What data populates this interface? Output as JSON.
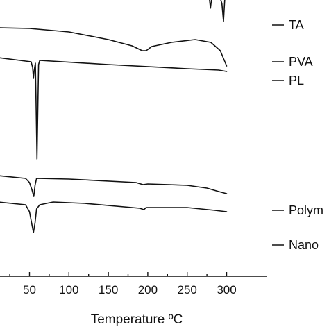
{
  "chart_data": {
    "type": "line",
    "xlabel": "Temperature ºC",
    "ylabel": "",
    "xlim": [
      10,
      305
    ],
    "xticks": [
      50,
      100,
      150,
      200,
      250,
      300
    ],
    "tick_labels": [
      "50",
      "100",
      "150",
      "200",
      "250",
      "300"
    ],
    "grid": false,
    "legend": "right, next to each trace",
    "series": [
      {
        "name": "TA",
        "points": [
          [
            10,
            20
          ],
          [
            40,
            20.5
          ],
          [
            42,
            19.2
          ],
          [
            44,
            20.2
          ],
          [
            100,
            20.3
          ],
          [
            200,
            20.6
          ],
          [
            270,
            20.8
          ],
          [
            277,
            21.5
          ],
          [
            279.5,
            8.6
          ],
          [
            282,
            20.5
          ],
          [
            290,
            19.5
          ],
          [
            294,
            12
          ],
          [
            296,
            -0.8
          ],
          [
            297.5,
            14
          ],
          [
            299,
            24
          ],
          [
            301,
            31
          ]
        ]
      },
      {
        "name": "PVA",
        "points": [
          [
            10,
            -5.5
          ],
          [
            50,
            -6
          ],
          [
            100,
            -8.5
          ],
          [
            150,
            -14
          ],
          [
            180,
            -18.5
          ],
          [
            193,
            -22
          ],
          [
            198,
            -22
          ],
          [
            205,
            -19
          ],
          [
            230,
            -16
          ],
          [
            260,
            -14
          ],
          [
            280,
            -16
          ],
          [
            292,
            -22
          ],
          [
            300,
            -33
          ]
        ]
      },
      {
        "name": "PL",
        "points": [
          [
            10,
            -27
          ],
          [
            45,
            -29.5
          ],
          [
            52,
            -30
          ],
          [
            54,
            -34
          ],
          [
            55,
            -42
          ],
          [
            56,
            -36
          ],
          [
            57.5,
            -31
          ],
          [
            59.5,
            -100
          ],
          [
            61.5,
            -32
          ],
          [
            63,
            -29
          ],
          [
            150,
            -32
          ],
          [
            250,
            -35
          ],
          [
            290,
            -36
          ],
          [
            300,
            -37
          ]
        ]
      },
      {
        "name": "Polym",
        "points": [
          [
            10,
            -112
          ],
          [
            45,
            -114
          ],
          [
            50,
            -117
          ],
          [
            53,
            -122
          ],
          [
            55.5,
            -127
          ],
          [
            57,
            -119
          ],
          [
            59,
            -114
          ],
          [
            100,
            -114.5
          ],
          [
            185,
            -117
          ],
          [
            194,
            -118.5
          ],
          [
            200,
            -118
          ],
          [
            250,
            -119
          ],
          [
            275,
            -121
          ],
          [
            290,
            -123.5
          ],
          [
            300,
            -125
          ]
        ]
      },
      {
        "name": "Nano",
        "points": [
          [
            10,
            -131
          ],
          [
            45,
            -133
          ],
          [
            50,
            -138
          ],
          [
            53,
            -147
          ],
          [
            55,
            -153
          ],
          [
            57,
            -146
          ],
          [
            59,
            -136
          ],
          [
            63,
            -133
          ],
          [
            80,
            -131
          ],
          [
            120,
            -132
          ],
          [
            190,
            -135.5
          ],
          [
            195,
            -136.5
          ],
          [
            198,
            -135
          ],
          [
            250,
            -135
          ],
          [
            285,
            -137
          ],
          [
            300,
            -138
          ]
        ]
      }
    ]
  }
}
